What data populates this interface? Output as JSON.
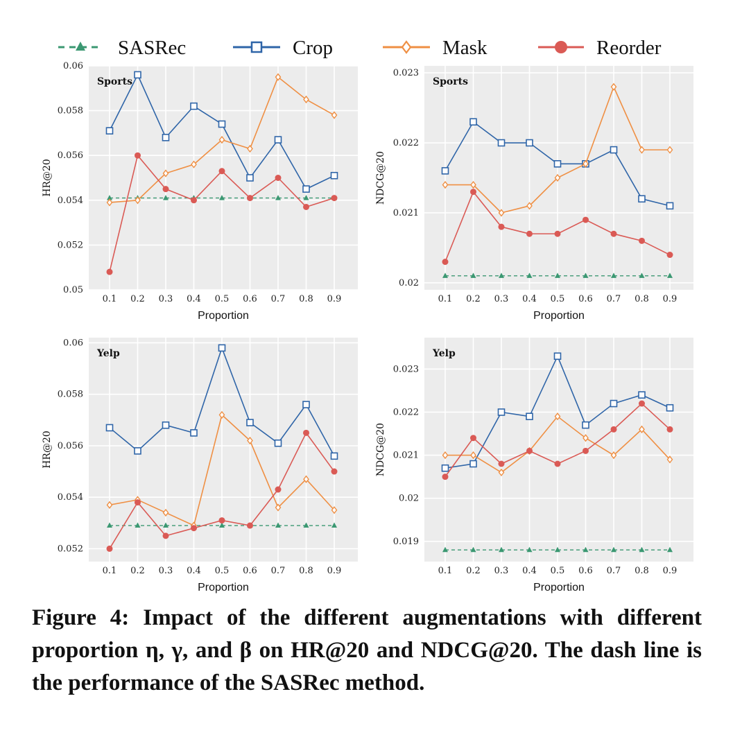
{
  "legend": [
    {
      "name": "SASRec",
      "color": "#3b9872",
      "marker": "triangle",
      "dashed": true
    },
    {
      "name": "Crop",
      "color": "#2f65a8",
      "marker": "square-open",
      "dashed": false
    },
    {
      "name": "Mask",
      "color": "#ef8f43",
      "marker": "diamond-open",
      "dashed": false
    },
    {
      "name": "Reorder",
      "color": "#da5a55",
      "marker": "circle",
      "dashed": false
    }
  ],
  "caption": "Figure 4: Impact of the different augmentations with different proportion η, γ, and β on HR@20 and NDCG@20. The dash line is the performance of the SASRec method.",
  "chart_data": [
    {
      "type": "line",
      "label": "Sports",
      "xlabel": "Proportion",
      "ylabel": "HR@20",
      "x": [
        "0.1",
        "0.2",
        "0.3",
        "0.4",
        "0.5",
        "0.6",
        "0.7",
        "0.8",
        "0.9"
      ],
      "ylim": [
        0.05,
        0.06
      ],
      "yticks": [
        "0.05",
        "0.052",
        "0.054",
        "0.056",
        "0.058",
        "0.06"
      ],
      "series": [
        {
          "name": "SASRec",
          "values": [
            0.0541,
            0.0541,
            0.0541,
            0.0541,
            0.0541,
            0.0541,
            0.0541,
            0.0541,
            0.0541
          ]
        },
        {
          "name": "Crop",
          "values": [
            0.0571,
            0.0596,
            0.0568,
            0.0582,
            0.0574,
            0.055,
            0.0567,
            0.0545,
            0.0551
          ]
        },
        {
          "name": "Mask",
          "values": [
            0.0539,
            0.054,
            0.0552,
            0.0556,
            0.0567,
            0.0563,
            0.0595,
            0.0585,
            0.0578
          ]
        },
        {
          "name": "Reorder",
          "values": [
            0.0508,
            0.056,
            0.0545,
            0.054,
            0.0553,
            0.0541,
            0.055,
            0.0537,
            0.0541
          ]
        }
      ]
    },
    {
      "type": "line",
      "label": "Sports",
      "xlabel": "Proportion",
      "ylabel": "NDCG@20",
      "x": [
        "0.1",
        "0.2",
        "0.3",
        "0.4",
        "0.5",
        "0.6",
        "0.7",
        "0.8",
        "0.9"
      ],
      "ylim": [
        0.0199,
        0.0231
      ],
      "yticks": [
        "0.02",
        "0.021",
        "0.022",
        "0.023"
      ],
      "series": [
        {
          "name": "SASRec",
          "values": [
            0.0201,
            0.0201,
            0.0201,
            0.0201,
            0.0201,
            0.0201,
            0.0201,
            0.0201,
            0.0201
          ]
        },
        {
          "name": "Crop",
          "values": [
            0.0216,
            0.0223,
            0.022,
            0.022,
            0.0217,
            0.0217,
            0.0219,
            0.0212,
            0.0211
          ]
        },
        {
          "name": "Mask",
          "values": [
            0.0214,
            0.0214,
            0.021,
            0.0211,
            0.0215,
            0.0217,
            0.0228,
            0.0219,
            0.0219
          ]
        },
        {
          "name": "Reorder",
          "values": [
            0.0203,
            0.0213,
            0.0208,
            0.0207,
            0.0207,
            0.0209,
            0.0207,
            0.0206,
            0.0204
          ]
        }
      ]
    },
    {
      "type": "line",
      "label": "Yelp",
      "xlabel": "Proportion",
      "ylabel": "HR@20",
      "x": [
        "0.1",
        "0.2",
        "0.3",
        "0.4",
        "0.5",
        "0.6",
        "0.7",
        "0.8",
        "0.9"
      ],
      "ylim": [
        0.0515,
        0.0602
      ],
      "yticks": [
        "0.052",
        "0.054",
        "0.056",
        "0.058",
        "0.06"
      ],
      "series": [
        {
          "name": "SASRec",
          "values": [
            0.0529,
            0.0529,
            0.0529,
            0.0529,
            0.0529,
            0.0529,
            0.0529,
            0.0529,
            0.0529
          ]
        },
        {
          "name": "Crop",
          "values": [
            0.0567,
            0.0558,
            0.0568,
            0.0565,
            0.0598,
            0.0569,
            0.0561,
            0.0576,
            0.0556
          ]
        },
        {
          "name": "Mask",
          "values": [
            0.0537,
            0.0539,
            0.0534,
            0.0529,
            0.0572,
            0.0562,
            0.0536,
            0.0547,
            0.0535
          ]
        },
        {
          "name": "Reorder",
          "values": [
            0.052,
            0.0538,
            0.0525,
            0.0528,
            0.0531,
            0.0529,
            0.0543,
            0.0565,
            0.055
          ]
        }
      ]
    },
    {
      "type": "line",
      "label": "Yelp",
      "xlabel": "Proportion",
      "ylabel": "NDCG@20",
      "x": [
        "0.1",
        "0.2",
        "0.3",
        "0.4",
        "0.5",
        "0.6",
        "0.7",
        "0.8",
        "0.9"
      ],
      "ylim": [
        0.01853,
        0.02373
      ],
      "yticks": [
        "0.019",
        "0.02",
        "0.021",
        "0.022",
        "0.023"
      ],
      "series": [
        {
          "name": "SASRec",
          "values": [
            0.0188,
            0.0188,
            0.0188,
            0.0188,
            0.0188,
            0.0188,
            0.0188,
            0.0188,
            0.0188
          ]
        },
        {
          "name": "Crop",
          "values": [
            0.0207,
            0.0208,
            0.022,
            0.0219,
            0.0233,
            0.0217,
            0.0222,
            0.0224,
            0.0221
          ]
        },
        {
          "name": "Mask",
          "values": [
            0.021,
            0.021,
            0.0206,
            0.0211,
            0.0219,
            0.0214,
            0.021,
            0.0216,
            0.0209
          ]
        },
        {
          "name": "Reorder",
          "values": [
            0.0205,
            0.0214,
            0.0208,
            0.0211,
            0.0208,
            0.0211,
            0.0216,
            0.0222,
            0.0216
          ]
        }
      ]
    }
  ]
}
